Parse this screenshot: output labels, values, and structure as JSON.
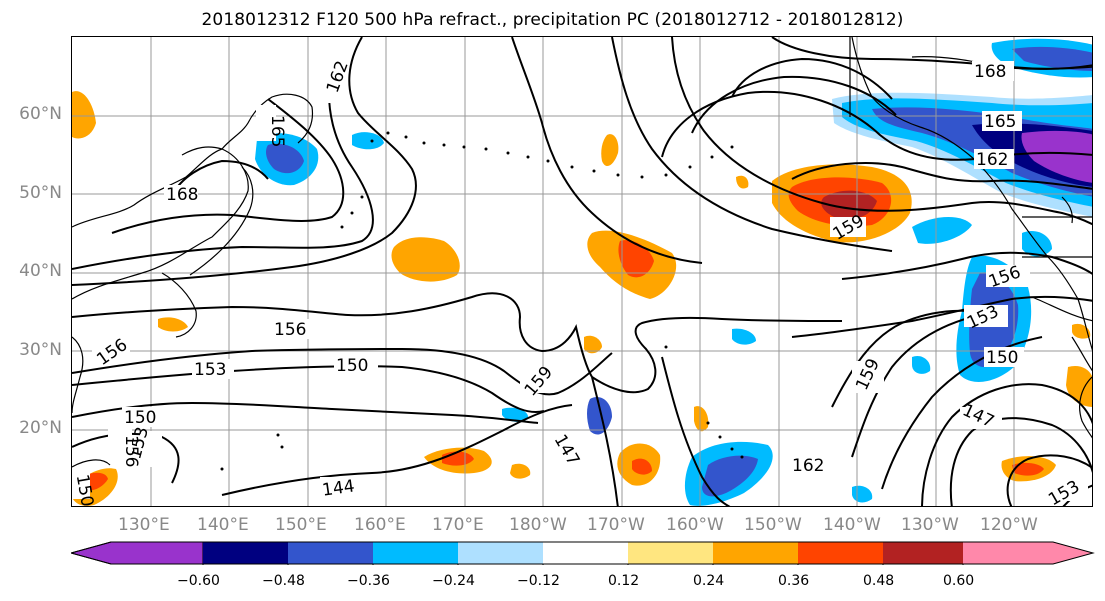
{
  "title": "2018012312 F120 500 hPa refract., precipitation PC (2018012712 - 2018012812)",
  "lat_labels": [
    {
      "id": "60n",
      "text": "60°N"
    },
    {
      "id": "50n",
      "text": "50°N"
    },
    {
      "id": "40n",
      "text": "40°N"
    },
    {
      "id": "30n",
      "text": "30°N"
    },
    {
      "id": "20n",
      "text": "20°N"
    }
  ],
  "lon_labels": [
    {
      "id": "130e",
      "text": "130°E"
    },
    {
      "id": "140e",
      "text": "140°E"
    },
    {
      "id": "150e",
      "text": "150°E"
    },
    {
      "id": "160e",
      "text": "160°E"
    },
    {
      "id": "170e",
      "text": "170°E"
    },
    {
      "id": "180w",
      "text": "180°W"
    },
    {
      "id": "170w",
      "text": "170°W"
    },
    {
      "id": "160w",
      "text": "160°W"
    },
    {
      "id": "150w",
      "text": "150°W"
    },
    {
      "id": "140w",
      "text": "140°W"
    },
    {
      "id": "130w",
      "text": "130°W"
    },
    {
      "id": "120w",
      "text": "120°W"
    }
  ],
  "contour_labels": {
    "c168a": "168",
    "c165a": "165",
    "c162a": "162",
    "c168b": "168",
    "c165b": "165",
    "c162b": "162",
    "c159a": "159",
    "c156a": "156",
    "c153a": "153",
    "c150a": "150",
    "c156b": "156",
    "c153b": "153",
    "c150b": "150",
    "c159b": "159",
    "c147a": "147",
    "c144a": "144",
    "c162c": "162",
    "c159c": "159",
    "c156c": "156",
    "c153c": "153",
    "c150c": "150",
    "c147b": "147",
    "c153d": "153",
    "c156d": "156",
    "c150d": "150",
    "c153e": "153"
  },
  "colorbar": {
    "colors": [
      "#9933cc",
      "#000080",
      "#3355cc",
      "#00bbff",
      "#aee0ff",
      "#ffffff",
      "#ffe680",
      "#ffa500",
      "#ff4400",
      "#b22222",
      "#ff88aa"
    ],
    "ticks": [
      "−0.60",
      "−0.48",
      "−0.36",
      "−0.24",
      "−0.12",
      "0.12",
      "0.24",
      "0.36",
      "0.48",
      "0.60"
    ]
  }
}
